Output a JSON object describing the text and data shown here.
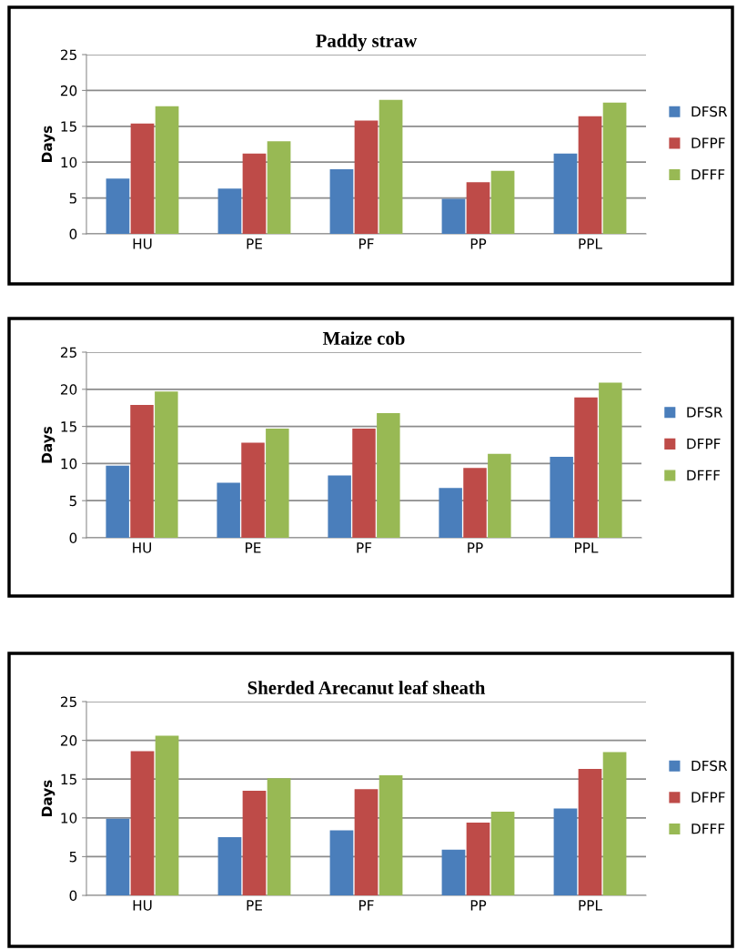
{
  "chart_data": [
    {
      "type": "bar",
      "title": "Paddy straw",
      "ylabel": "Days",
      "categories": [
        "HU",
        "PE",
        "PF",
        "PP",
        "PPL"
      ],
      "series": [
        {
          "name": "DFSR",
          "color": "#4a7ebb",
          "values": [
            7.7,
            6.3,
            9.0,
            4.9,
            11.2
          ]
        },
        {
          "name": "DFPF",
          "color": "#be4b48",
          "values": [
            15.4,
            11.2,
            15.8,
            7.2,
            16.4
          ]
        },
        {
          "name": "DFFF",
          "color": "#98b954",
          "values": [
            17.8,
            12.9,
            18.7,
            8.8,
            18.3
          ]
        }
      ],
      "ylim": [
        0,
        25
      ],
      "yticks": [
        0,
        5,
        10,
        15,
        20,
        25
      ],
      "grid": "y",
      "legend": "right"
    },
    {
      "type": "bar",
      "title": "Maize cob",
      "ylabel": "Days",
      "categories": [
        "HU",
        "PE",
        "PF",
        "PP",
        "PPL"
      ],
      "series": [
        {
          "name": "DFSR",
          "color": "#4a7ebb",
          "values": [
            9.7,
            7.4,
            8.4,
            6.7,
            10.9
          ]
        },
        {
          "name": "DFPF",
          "color": "#be4b48",
          "values": [
            17.9,
            12.8,
            14.7,
            9.4,
            18.9
          ]
        },
        {
          "name": "DFFF",
          "color": "#98b954",
          "values": [
            19.7,
            14.7,
            16.8,
            11.3,
            20.9
          ]
        }
      ],
      "ylim": [
        0,
        25
      ],
      "yticks": [
        0,
        5,
        10,
        15,
        20,
        25
      ],
      "grid": "y",
      "legend": "right"
    },
    {
      "type": "bar",
      "title": "Sherded Arecanut leaf sheath",
      "ylabel": "Days",
      "categories": [
        "HU",
        "PE",
        "PF",
        "PP",
        "PPL"
      ],
      "series": [
        {
          "name": "DFSR",
          "color": "#4a7ebb",
          "values": [
            9.9,
            7.5,
            8.4,
            5.9,
            11.2
          ]
        },
        {
          "name": "DFPF",
          "color": "#be4b48",
          "values": [
            18.6,
            13.5,
            13.7,
            9.4,
            16.3
          ]
        },
        {
          "name": "DFFF",
          "color": "#98b954",
          "values": [
            20.6,
            15.1,
            15.5,
            10.8,
            18.5
          ]
        }
      ],
      "ylim": [
        0,
        25
      ],
      "yticks": [
        0,
        5,
        10,
        15,
        20,
        25
      ],
      "grid": "y",
      "legend": "right"
    }
  ]
}
